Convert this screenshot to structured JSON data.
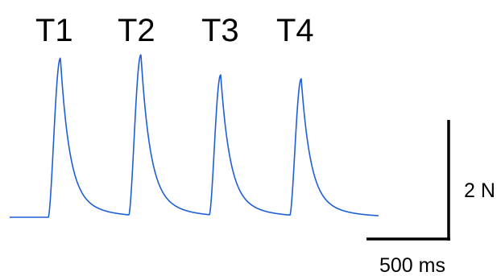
{
  "chart_data": {
    "type": "line",
    "peak_labels": [
      "T1",
      "T2",
      "T3",
      "T4"
    ],
    "scale_bar": {
      "force_label": "2 N",
      "force_value": 2,
      "time_label": "500 ms",
      "time_value": 500
    },
    "ylabel": "",
    "xlabel": "",
    "x_range_ms": [
      0,
      2290
    ],
    "y_range_N": [
      -0.1,
      4.6
    ],
    "baseline_N": 0,
    "series": [
      {
        "color": "#1f5fd6",
        "twitches": [
          {
            "label": "T1",
            "onset_ms": 240,
            "peak_ms": 315,
            "peak_N": 4.3
          },
          {
            "label": "T2",
            "onset_ms": 740,
            "peak_ms": 815,
            "peak_N": 4.35
          },
          {
            "label": "T3",
            "onset_ms": 1240,
            "peak_ms": 1310,
            "peak_N": 3.8
          },
          {
            "label": "T4",
            "onset_ms": 1740,
            "peak_ms": 1810,
            "peak_N": 3.7
          }
        ],
        "end_ms": 2290
      }
    ],
    "grid": false,
    "legend": "none"
  }
}
